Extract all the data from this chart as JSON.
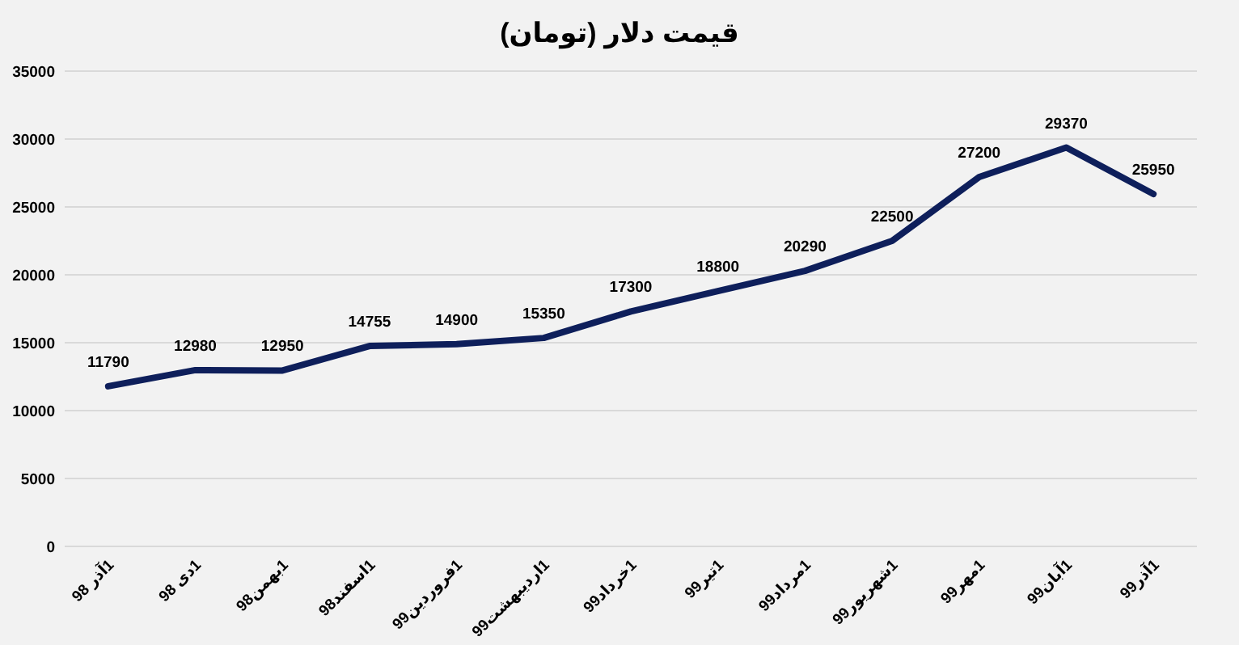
{
  "chart_data": {
    "type": "line",
    "title": "قیمت دلار (تومان)",
    "categories": [
      "1آذر 98",
      "1دی 98",
      "1بهمن98",
      "1اسفند98",
      "1فروردین99",
      "1اردیبهشت99",
      "1خرداد99",
      "1تیر99",
      "1مرداد99",
      "1شهریور99",
      "1مهر99",
      "1آبان99",
      "1آذر99"
    ],
    "series": [
      {
        "color": "#0e1f5b",
        "values": [
          11790,
          12980,
          12950,
          14755,
          14900,
          15350,
          17300,
          18800,
          20290,
          22500,
          27200,
          29370,
          25950
        ]
      }
    ],
    "ylim": [
      0,
      35000
    ],
    "yticks": [
      0,
      5000,
      10000,
      15000,
      20000,
      25000,
      30000,
      35000
    ],
    "grid": "y",
    "data_labels": true,
    "marker": "none",
    "line_style": "solid"
  }
}
